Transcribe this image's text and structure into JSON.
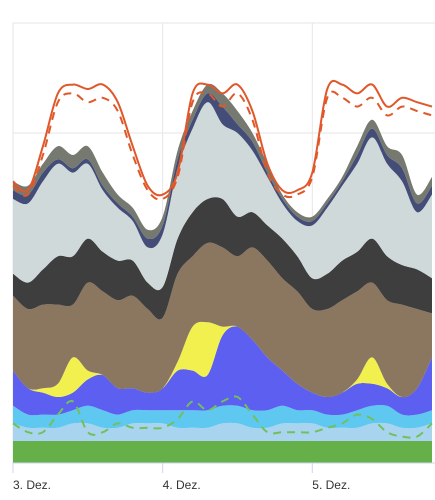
{
  "chart_data": {
    "type": "area",
    "stacked": true,
    "title": "",
    "xlabel": "",
    "ylabel": "",
    "x_tick_labels": [
      "3. Dez.",
      "4. Dez.",
      "5. Dez."
    ],
    "x_ticks": [
      0,
      1,
      2
    ],
    "xlim": [
      0,
      2.82
    ],
    "ylim": [
      0,
      100
    ],
    "grid": true,
    "legend": "none",
    "x": [
      0.0,
      0.1,
      0.2,
      0.3,
      0.4,
      0.5,
      0.6,
      0.7,
      0.8,
      0.9,
      1.0,
      1.1,
      1.2,
      1.3,
      1.4,
      1.5,
      1.6,
      1.7,
      1.8,
      1.9,
      2.0,
      2.1,
      2.2,
      2.3,
      2.4,
      2.5,
      2.6,
      2.7,
      2.8
    ],
    "series": [
      {
        "color": "#66b04a",
        "values": [
          5,
          5,
          5,
          5,
          5,
          5,
          5,
          5,
          5,
          5,
          5,
          5,
          5,
          5,
          5,
          5,
          5,
          5,
          5,
          5,
          5,
          5,
          5,
          5,
          5,
          5,
          5,
          5,
          5
        ]
      },
      {
        "color": "#a9d4ef",
        "values": [
          4,
          3,
          3,
          3,
          4,
          4,
          3,
          3,
          4,
          4,
          4,
          3,
          3,
          3,
          4,
          4,
          3,
          3,
          4,
          4,
          4,
          3,
          3,
          3,
          4,
          4,
          3,
          3,
          4
        ]
      },
      {
        "color": "#5fc8f0",
        "values": [
          4,
          3,
          3,
          3,
          3,
          4,
          4,
          3,
          3,
          3,
          3,
          4,
          4,
          4,
          4,
          4,
          4,
          4,
          4,
          3,
          3,
          3,
          3,
          4,
          4,
          4,
          3,
          3,
          3
        ]
      },
      {
        "color": "#5c5ff0",
        "values": [
          8,
          6,
          5,
          4,
          4,
          6,
          8,
          6,
          5,
          4,
          5,
          9,
          9,
          8,
          16,
          18,
          16,
          12,
          8,
          6,
          4,
          4,
          5,
          6,
          5,
          4,
          4,
          6,
          12
        ]
      },
      {
        "color": "#f2f04f",
        "values": [
          0,
          0,
          1,
          3,
          8,
          2,
          0,
          0,
          0,
          0,
          0,
          2,
          10,
          12,
          2,
          0,
          0,
          0,
          0,
          0,
          0,
          0,
          0,
          1,
          6,
          1,
          0,
          0,
          0
        ]
      },
      {
        "color": "#8b7660",
        "values": [
          17,
          18,
          19,
          18,
          12,
          20,
          19,
          20,
          21,
          19,
          16,
          20,
          16,
          18,
          18,
          16,
          21,
          22,
          21,
          21,
          19,
          20,
          21,
          20,
          17,
          19,
          21,
          18,
          10
        ]
      },
      {
        "color": "#3e3e3e",
        "values": [
          5,
          6,
          8,
          11,
          11,
          10,
          9,
          9,
          8,
          6,
          7,
          8,
          10,
          10,
          11,
          9,
          8,
          8,
          9,
          8,
          7,
          8,
          9,
          9,
          10,
          10,
          9,
          9,
          8
        ]
      },
      {
        "color": "#cfd9da",
        "values": [
          17,
          18,
          20,
          21,
          19,
          17,
          14,
          12,
          9,
          8,
          12,
          16,
          19,
          22,
          17,
          19,
          14,
          11,
          8,
          8,
          12,
          15,
          17,
          20,
          23,
          21,
          19,
          13,
          19
        ]
      },
      {
        "color": "#434d78",
        "values": [
          2,
          2,
          2,
          1,
          1,
          1,
          1,
          1,
          1,
          2,
          2,
          2,
          2,
          2,
          4,
          2,
          2,
          1,
          1,
          1,
          1,
          1,
          1,
          2,
          2,
          2,
          3,
          2,
          2
        ]
      },
      {
        "color": "#76796f",
        "values": [
          2,
          2,
          2,
          3,
          3,
          3,
          3,
          2,
          2,
          2,
          2,
          2,
          2,
          2,
          3,
          3,
          2,
          2,
          1,
          1,
          1,
          1,
          1,
          2,
          2,
          2,
          3,
          2,
          2
        ]
      }
    ],
    "lines": [
      {
        "color": "#e0582a",
        "dash": false,
        "values": [
          64,
          62,
          72,
          84,
          86,
          85,
          86,
          82,
          72,
          63,
          61,
          66,
          84,
          86,
          84,
          86,
          80,
          68,
          62,
          62,
          66,
          85,
          86,
          84,
          86,
          81,
          83,
          82,
          81
        ]
      },
      {
        "color": "#e0582a",
        "dash": true,
        "values": [
          63,
          61,
          70,
          82,
          84,
          82,
          83,
          80,
          70,
          62,
          60,
          65,
          82,
          84,
          81,
          84,
          78,
          66,
          61,
          61,
          65,
          83,
          83,
          81,
          83,
          79,
          81,
          80,
          79
        ]
      },
      {
        "color": "#72c05a",
        "dash": true,
        "values": [
          9,
          7,
          7,
          11,
          14,
          7,
          7,
          9,
          8,
          8,
          8,
          10,
          14,
          12,
          14,
          15,
          11,
          7,
          7,
          7,
          7,
          8,
          9,
          11,
          10,
          7,
          6,
          6,
          9
        ]
      }
    ]
  }
}
